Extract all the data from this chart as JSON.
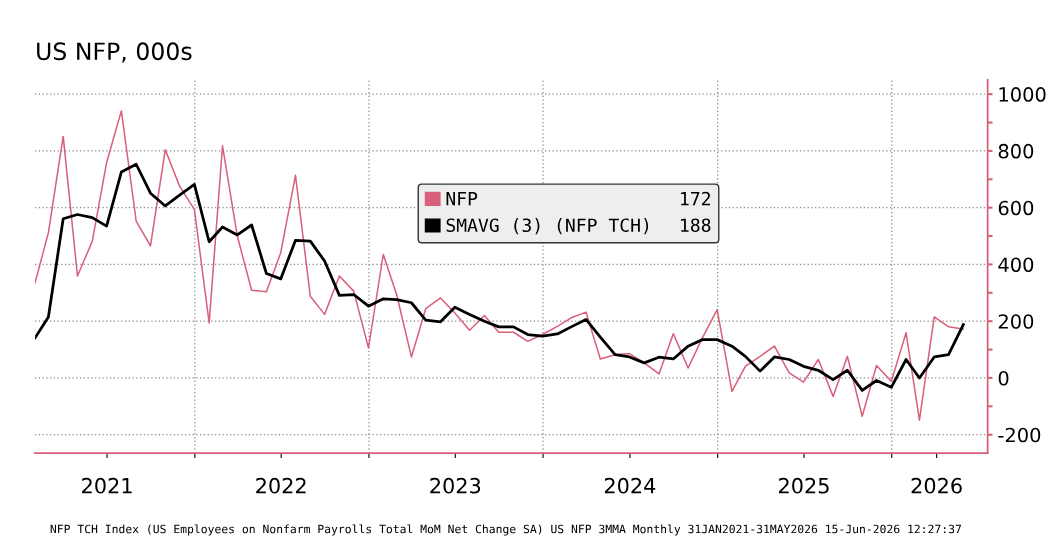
{
  "chart_data": {
    "type": "line",
    "title": "US NFP, 000s",
    "x": [
      "2021-01-31",
      "2021-02-28",
      "2021-03-31",
      "2021-04-30",
      "2021-05-31",
      "2021-06-30",
      "2021-07-31",
      "2021-08-31",
      "2021-09-30",
      "2021-10-31",
      "2021-11-30",
      "2021-12-31",
      "2022-01-31",
      "2022-02-28",
      "2022-03-31",
      "2022-04-30",
      "2022-05-31",
      "2022-06-30",
      "2022-07-31",
      "2022-08-31",
      "2022-09-30",
      "2022-10-31",
      "2022-11-30",
      "2022-12-31",
      "2023-01-31",
      "2023-02-28",
      "2023-03-31",
      "2023-04-30",
      "2023-05-31",
      "2023-06-30",
      "2023-07-31",
      "2023-08-31",
      "2023-09-30",
      "2023-10-31",
      "2023-11-30",
      "2023-12-31",
      "2024-01-31",
      "2024-02-29",
      "2024-03-31",
      "2024-04-30",
      "2024-05-31",
      "2024-06-30",
      "2024-07-31",
      "2024-08-31",
      "2024-09-30",
      "2024-10-31",
      "2024-11-30",
      "2024-12-31",
      "2025-01-31",
      "2025-02-28",
      "2025-03-31",
      "2025-04-30",
      "2025-05-31",
      "2025-06-30",
      "2025-07-31",
      "2025-08-31",
      "2025-09-30",
      "2025-10-31",
      "2025-11-30",
      "2025-12-31",
      "2026-01-31",
      "2026-02-28",
      "2026-03-31",
      "2026-04-30",
      "2026-05-31"
    ],
    "series": [
      {
        "name": "NFP",
        "color": "#d8607a",
        "values": [
          335,
          512,
          851,
          359,
          482,
          759,
          941,
          553,
          465,
          804,
          676,
          594,
          194,
          818,
          500,
          309,
          304,
          441,
          714,
          288,
          224,
          359,
          306,
          106,
          435,
          294,
          74,
          244,
          282,
          229,
          168,
          220,
          161,
          161,
          129,
          153,
          182,
          212,
          232,
          67,
          82,
          86,
          53,
          14,
          156,
          35,
          141,
          241,
          -47,
          41,
          76,
          112,
          18,
          -15,
          65,
          -65,
          76,
          -135,
          44,
          -12,
          159,
          -149,
          215,
          180,
          172
        ]
      },
      {
        "name": "SMAVG (3) (NFP TCH)",
        "color": "#000000",
        "values": [
          141,
          215,
          561,
          576,
          565,
          535,
          726,
          753,
          651,
          606,
          644,
          682,
          480,
          532,
          504,
          539,
          368,
          349,
          485,
          482,
          412,
          291,
          294,
          253,
          279,
          276,
          265,
          204,
          198,
          249,
          224,
          200,
          180,
          180,
          153,
          147,
          155,
          180,
          206,
          144,
          82,
          74,
          53,
          73,
          67,
          112,
          135,
          135,
          112,
          76,
          24,
          74,
          65,
          41,
          27,
          -6,
          27,
          -44,
          -9,
          -33,
          65,
          0,
          74,
          82,
          188
        ]
      }
    ],
    "xlim": [
      "2021-01-31",
      "2026-07-21"
    ],
    "xticks": [
      {
        "value": "2021-07-01",
        "label": "2021"
      },
      {
        "value": "2022-01-01",
        "label": null
      },
      {
        "value": "2022-07-01",
        "label": "2022"
      },
      {
        "value": "2023-01-01",
        "label": null
      },
      {
        "value": "2023-07-01",
        "label": "2023"
      },
      {
        "value": "2024-01-01",
        "label": null
      },
      {
        "value": "2024-07-01",
        "label": "2024"
      },
      {
        "value": "2025-01-01",
        "label": null
      },
      {
        "value": "2025-07-01",
        "label": "2025"
      },
      {
        "value": "2026-01-01",
        "label": null
      },
      {
        "value": "2026-04-05",
        "label": "2026"
      }
    ],
    "ylim": [
      -265,
      1050
    ],
    "yticks": [
      -200,
      {
        "value": -100,
        "label": null
      },
      0,
      {
        "value": 100,
        "label": null
      },
      200,
      {
        "value": 300,
        "label": null
      },
      400,
      {
        "value": 500,
        "label": null
      },
      600,
      {
        "value": 700,
        "label": null
      },
      800,
      {
        "value": 900,
        "label": null
      },
      1000
    ],
    "grid": true,
    "legend": "top",
    "annotations": [
      "172",
      "188",
      "NFP TCH Index (US Employees on Nonfarm Payrolls Total MoM Net Change SA) US NFP 3MMA Monthly 31JAN2021-31MAY2026 15-Jun-2026 12:27:37"
    ]
  }
}
